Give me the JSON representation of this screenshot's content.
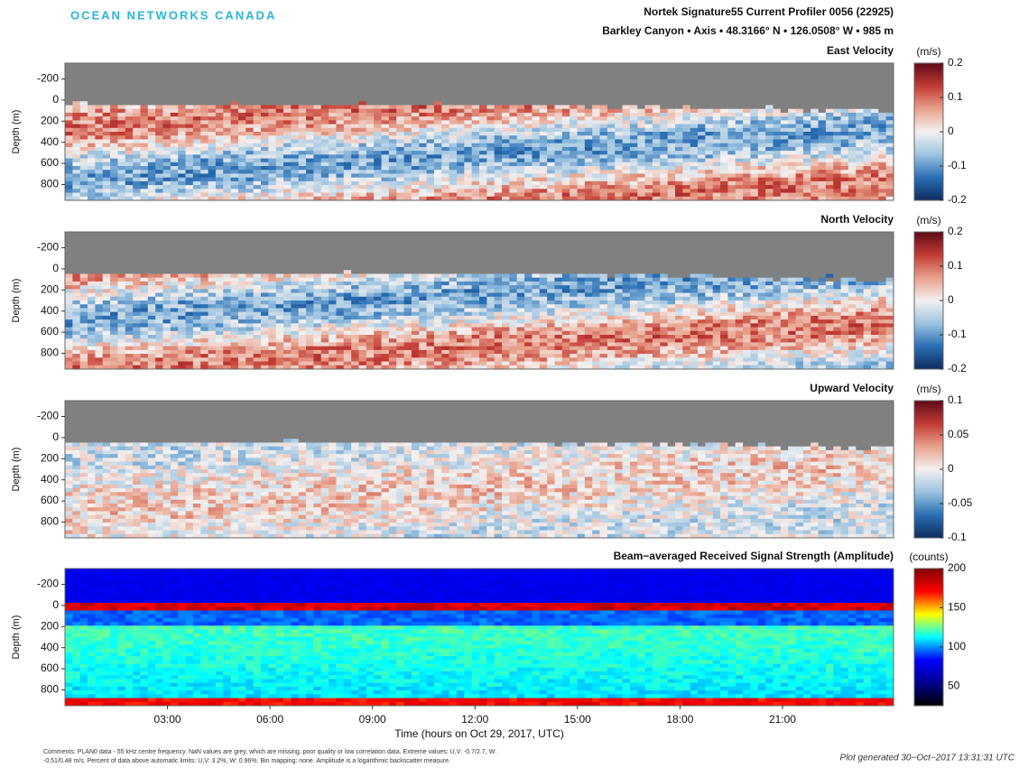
{
  "logo": "OCEAN NETWORKS CANADA",
  "header": {
    "title": "Nortek Signature55 Current Profiler 0056 (22925)",
    "subtitle": "Barkley Canyon • Axis • 48.3166° N • 126.0508° W • 985 m"
  },
  "chart_data": [
    {
      "type": "heatmap",
      "title": "East Velocity",
      "ylabel": "Depth (m)",
      "colorbar_label": "(m/s)",
      "ylim": [
        -350,
        950
      ],
      "yticks": [
        -200,
        0,
        200,
        400,
        600,
        800
      ],
      "xlim": [
        0,
        24.25
      ],
      "clim": [
        -0.2,
        0.2
      ],
      "cticks": [
        -0.2,
        -0.1,
        0,
        0.1,
        0.2
      ],
      "colormap": [
        "#0d2b5e",
        "#2a6fb5",
        "#9cc3e0",
        "#f4f1f0",
        "#e8a08b",
        "#c23a34",
        "#5e0a17"
      ],
      "missing_color": "#808080"
    },
    {
      "type": "heatmap",
      "title": "North Velocity",
      "ylabel": "Depth (m)",
      "colorbar_label": "(m/s)",
      "ylim": [
        -350,
        950
      ],
      "yticks": [
        -200,
        0,
        200,
        400,
        600,
        800
      ],
      "xlim": [
        0,
        24.25
      ],
      "clim": [
        -0.2,
        0.2
      ],
      "cticks": [
        -0.2,
        -0.1,
        0,
        0.1,
        0.2
      ],
      "colormap": [
        "#0d2b5e",
        "#2a6fb5",
        "#9cc3e0",
        "#f4f1f0",
        "#e8a08b",
        "#c23a34",
        "#5e0a17"
      ],
      "missing_color": "#808080"
    },
    {
      "type": "heatmap",
      "title": "Upward Velocity",
      "ylabel": "Depth (m)",
      "colorbar_label": "(m/s)",
      "ylim": [
        -350,
        950
      ],
      "yticks": [
        -200,
        0,
        200,
        400,
        600,
        800
      ],
      "xlim": [
        0,
        24.25
      ],
      "clim": [
        -0.1,
        0.1
      ],
      "cticks": [
        -0.1,
        -0.05,
        0,
        0.05,
        0.1
      ],
      "colormap": [
        "#0d2b5e",
        "#2a6fb5",
        "#9cc3e0",
        "#f4f1f0",
        "#e8a08b",
        "#c23a34",
        "#5e0a17"
      ],
      "missing_color": "#808080"
    },
    {
      "type": "amplitude",
      "title": "Beam−averaged Received Signal Strength (Amplitude)",
      "ylabel": "Depth (m)",
      "colorbar_label": "(counts)",
      "ylim": [
        -350,
        950
      ],
      "yticks": [
        -200,
        0,
        200,
        400,
        600,
        800
      ],
      "xlim": [
        0,
        24.25
      ],
      "xticks": [
        {
          "value": 3,
          "label": "03:00"
        },
        {
          "value": 6,
          "label": "06:00"
        },
        {
          "value": 9,
          "label": "09:00"
        },
        {
          "value": 12,
          "label": "12:00"
        },
        {
          "value": 15,
          "label": "15:00"
        },
        {
          "value": 18,
          "label": "18:00"
        },
        {
          "value": 21,
          "label": "21:00"
        }
      ],
      "xlabel": "Time (hours on Oct 29, 2017, UTC)",
      "clim": [
        25,
        200
      ],
      "cticks": [
        50,
        100,
        150,
        200
      ],
      "colormap": [
        "#000000",
        "#00008f",
        "#0000ff",
        "#00ffff",
        "#ffff00",
        "#ff0000",
        "#800000"
      ]
    }
  ],
  "comments": [
    "Comments: PLAN0 data - 55 kHz centre frequency. NaN values are grey, which are missing, poor quality or low correlation data. Extreme values: U,V: -0.7/2.7, W:",
    "-0.51/0.48 m/s. Percent of data above automatic limits: U,V: 3.2%, W: 0.96%. Bin mapping: none. Amplitude is a logarithmic backscatter measure."
  ],
  "footer": "Plot generated 30−Oct−2017 13:31:31 UTC"
}
